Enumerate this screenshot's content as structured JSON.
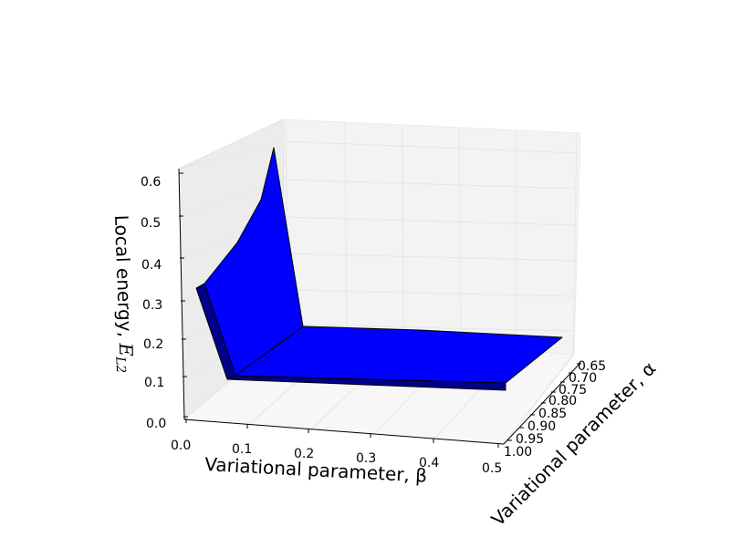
{
  "chart_data": {
    "type": "surface3d",
    "title": "",
    "xlabel": "Variational parameter, β",
    "ylabel": "Variational parameter, α",
    "zlabel": "Local energy, E_L2",
    "zlabel_main": "Local energy, ",
    "zlabel_symbol": "E",
    "zlabel_sub": "L2",
    "x_ticks": [
      "0.0",
      "0.1",
      "0.2",
      "0.3",
      "0.4",
      "0.5"
    ],
    "y_ticks": [
      "0.65",
      "0.70",
      "0.75",
      "0.80",
      "0.85",
      "0.90",
      "0.95",
      "1.00"
    ],
    "z_ticks": [
      "0.0",
      "0.1",
      "0.2",
      "0.3",
      "0.4",
      "0.5",
      "0.6"
    ],
    "xlim": [
      0.0,
      0.5
    ],
    "ylim": [
      0.6,
      1.0
    ],
    "zlim": [
      0.0,
      0.6
    ],
    "grid": true,
    "surface_color": "#0000ff",
    "edge_color": "#000000",
    "surface_points": {
      "front_edge_alpha_1_00": [
        {
          "beta": 0.0,
          "energy": 0.3
        },
        {
          "beta": 0.05,
          "energy": 0.07
        },
        {
          "beta": 0.5,
          "energy": 0.07
        }
      ],
      "back_edge_alpha_0_60": [
        {
          "beta": 0.0,
          "energy": 0.62
        },
        {
          "beta": 0.05,
          "energy": 0.07
        },
        {
          "beta": 0.5,
          "energy": 0.07
        }
      ]
    }
  }
}
